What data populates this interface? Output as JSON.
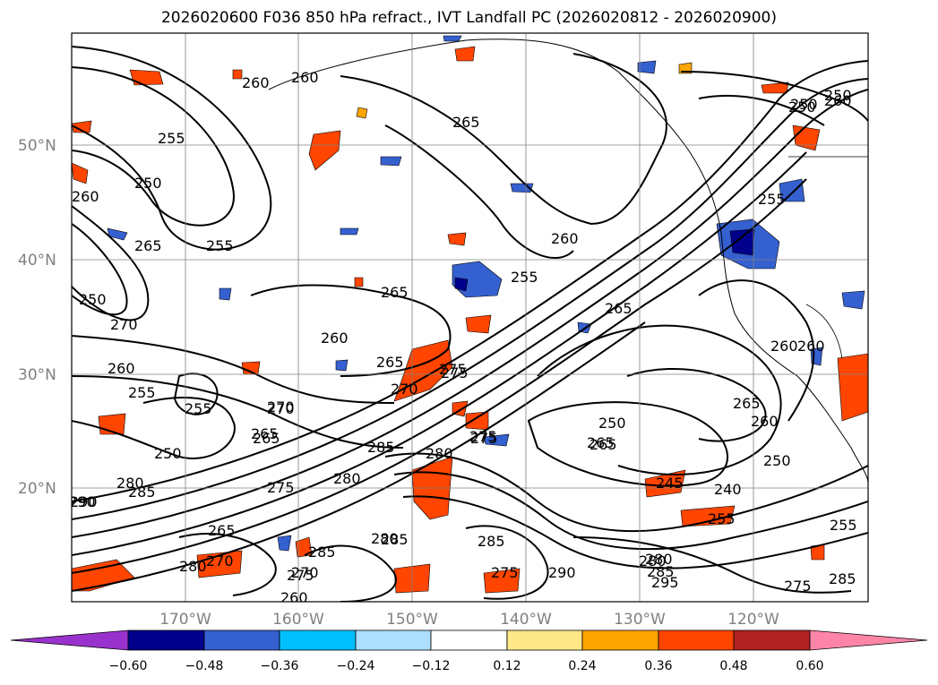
{
  "title": "2026020600 F036 850 hPa refract., IVT Landfall PC (2026020812 - 2026020900)",
  "map": {
    "lat_labels": [
      "50°N",
      "40°N",
      "30°N",
      "20°N"
    ],
    "lon_labels": [
      "170°W",
      "160°W",
      "150°W",
      "140°W",
      "130°W",
      "120°W"
    ],
    "contour_labels": [
      "260",
      "265",
      "255",
      "250",
      "260",
      "265",
      "255",
      "250",
      "260",
      "265",
      "255",
      "250",
      "270",
      "260",
      "255",
      "250",
      "265",
      "255",
      "250",
      "265",
      "260",
      "265",
      "270",
      "275",
      "265",
      "260",
      "270",
      "275",
      "280",
      "285",
      "280",
      "285",
      "290",
      "275",
      "280",
      "285",
      "265",
      "280",
      "260",
      "275",
      "285",
      "275",
      "290",
      "280",
      "295",
      "285",
      "280",
      "270",
      "275",
      "250",
      "265",
      "240",
      "250",
      "245",
      "255",
      "255",
      "260",
      "265",
      "260",
      "270",
      "275",
      "285",
      "290",
      "280",
      "285",
      "260",
      "270",
      "250",
      "255",
      "260",
      "265",
      "275"
    ],
    "colors": {
      "contour": "#000000",
      "grid": "#808080",
      "coast": "#000000"
    }
  },
  "colorbar": {
    "ticks": [
      "−0.60",
      "−0.48",
      "−0.36",
      "−0.24",
      "−0.12",
      "0.12",
      "0.24",
      "0.36",
      "0.48",
      "0.60"
    ],
    "colors": [
      "#9932CC",
      "#00008B",
      "#3560D0",
      "#00BFFF",
      "#ADDFFF",
      "#FFFFFF",
      "#FFE88A",
      "#FFA500",
      "#FF4500",
      "#B22222",
      "#FF85A8"
    ]
  }
}
